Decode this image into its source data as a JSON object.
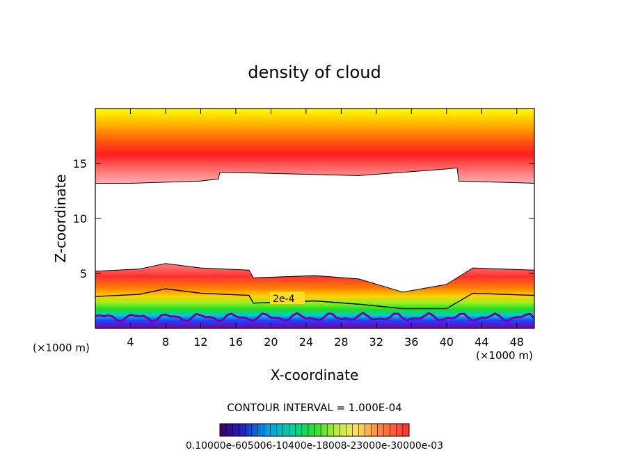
{
  "chart_data": {
    "type": "contour",
    "title": "density of cloud",
    "xlabel": "X-coordinate",
    "ylabel": "Z-coordinate",
    "x_unit_left": "(×1000 m)",
    "x_unit_right": "(×1000 m)",
    "xlim": [
      0,
      50
    ],
    "ylim": [
      0,
      20
    ],
    "xticks": [
      4,
      8,
      12,
      16,
      20,
      24,
      28,
      32,
      36,
      40,
      44,
      48
    ],
    "xtick_labels": [
      "4",
      "8",
      "12",
      "16",
      "20",
      "24",
      "28",
      "32",
      "36",
      "40",
      "44",
      "48"
    ],
    "yticks": [
      5,
      10,
      15
    ],
    "ytick_labels": [
      "5",
      "10",
      "15"
    ],
    "contour_label": "2e-4",
    "contour_level": 0.0002,
    "contour_interval_text": "CONTOUR INTERVAL = 1.000E-04",
    "colorbar_ticks_text": "0.10000e-605006-10400e-18008-23000e-30000e-03",
    "upper_cloud_base_km": [
      {
        "x": 0,
        "z": 13.2
      },
      {
        "x": 4,
        "z": 13.2
      },
      {
        "x": 8,
        "z": 13.3
      },
      {
        "x": 12,
        "z": 13.4
      },
      {
        "x": 14,
        "z": 13.6
      },
      {
        "x": 14.2,
        "z": 14.2
      },
      {
        "x": 20,
        "z": 14.1
      },
      {
        "x": 30,
        "z": 13.9
      },
      {
        "x": 40,
        "z": 14.5
      },
      {
        "x": 41.2,
        "z": 14.6
      },
      {
        "x": 41.4,
        "z": 13.4
      },
      {
        "x": 50,
        "z": 13.2
      }
    ],
    "lower_cloud_top_km": [
      {
        "x": 0,
        "z": 5.2
      },
      {
        "x": 5,
        "z": 5.4
      },
      {
        "x": 8,
        "z": 5.9
      },
      {
        "x": 12,
        "z": 5.5
      },
      {
        "x": 17.5,
        "z": 5.3
      },
      {
        "x": 18,
        "z": 4.6
      },
      {
        "x": 25,
        "z": 4.8
      },
      {
        "x": 30,
        "z": 4.5
      },
      {
        "x": 35,
        "z": 3.3
      },
      {
        "x": 40,
        "z": 4.0
      },
      {
        "x": 43,
        "z": 5.5
      },
      {
        "x": 50,
        "z": 5.3
      }
    ],
    "colors": {
      "top": "#ffff00",
      "core": "#ff1e1e",
      "edge": "#ffaaaa",
      "mid": "#ffaa00",
      "green": "#22dd22",
      "cyan": "#00cccc",
      "blue": "#2040ff",
      "purple": "#8000a0"
    }
  }
}
